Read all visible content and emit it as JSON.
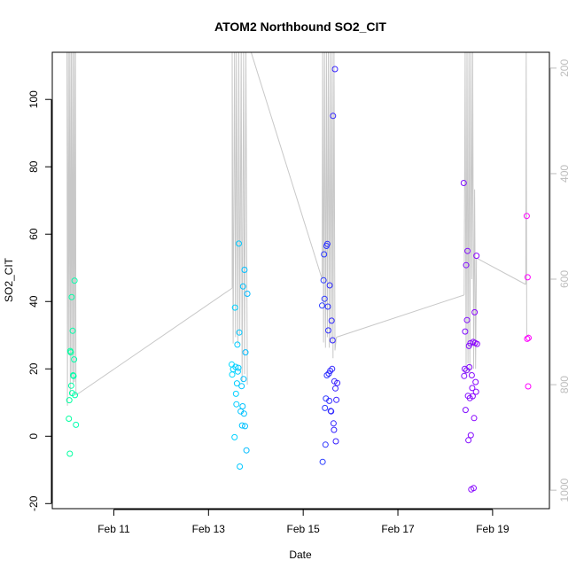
{
  "chart_data": {
    "type": "scatter",
    "title": "ATOM2 Northbound SO2_CIT",
    "xlabel": "Date",
    "ylabel": "SO2_CIT",
    "x_unit": "date (Feb)",
    "xlim": [
      9.7,
      20.2
    ],
    "ylim": [
      -21.5,
      114
    ],
    "y2lim": [
      1035,
      170
    ],
    "x_ticks": [
      {
        "value": 11,
        "label": "Feb 11"
      },
      {
        "value": 13,
        "label": "Feb 13"
      },
      {
        "value": 15,
        "label": "Feb 15"
      },
      {
        "value": 17,
        "label": "Feb 17"
      },
      {
        "value": 19,
        "label": "Feb 19"
      }
    ],
    "y_ticks": [
      -20,
      0,
      20,
      40,
      60,
      80,
      100
    ],
    "y2_ticks": [
      200,
      400,
      600,
      800,
      1000
    ],
    "grid": false,
    "point_marker": "open circle",
    "color_scale": "rainbow by date",
    "colors": {
      "altitude_line": "#c8c8c8",
      "axis": "#000000",
      "right_axis": "#bdbdbd"
    },
    "points": [
      {
        "x": 10.05,
        "y": 5.2,
        "color": "#00ffa0"
      },
      {
        "x": 10.07,
        "y": -5.2,
        "color": "#00ffa0"
      },
      {
        "x": 10.06,
        "y": 10.7,
        "color": "#00ffa0"
      },
      {
        "x": 10.08,
        "y": 25.3,
        "color": "#00ffa0"
      },
      {
        "x": 10.09,
        "y": 24.9,
        "color": "#00ffa0"
      },
      {
        "x": 10.1,
        "y": 15.0,
        "color": "#00ffa5"
      },
      {
        "x": 10.11,
        "y": 41.3,
        "color": "#00ffa5"
      },
      {
        "x": 10.12,
        "y": 12.8,
        "color": "#00ffa5"
      },
      {
        "x": 10.13,
        "y": 31.3,
        "color": "#00ffa8"
      },
      {
        "x": 10.14,
        "y": 18.1,
        "color": "#00ffa8"
      },
      {
        "x": 10.15,
        "y": 17.9,
        "color": "#00ffaa"
      },
      {
        "x": 10.16,
        "y": 22.8,
        "color": "#00ffaa"
      },
      {
        "x": 10.17,
        "y": 46.2,
        "color": "#00ffac"
      },
      {
        "x": 10.18,
        "y": 12.2,
        "color": "#00ffac"
      },
      {
        "x": 10.2,
        "y": 3.4,
        "color": "#00ffb0"
      },
      {
        "x": 13.49,
        "y": 21.3,
        "color": "#00d8ff"
      },
      {
        "x": 13.5,
        "y": 18.3,
        "color": "#00d8ff"
      },
      {
        "x": 13.52,
        "y": 19.9,
        "color": "#00d5ff"
      },
      {
        "x": 13.55,
        "y": -0.3,
        "color": "#00d2ff"
      },
      {
        "x": 13.56,
        "y": 38.2,
        "color": "#00d2ff"
      },
      {
        "x": 13.57,
        "y": 20.6,
        "color": "#00d0ff"
      },
      {
        "x": 13.58,
        "y": 12.6,
        "color": "#00d0ff"
      },
      {
        "x": 13.59,
        "y": 9.5,
        "color": "#00ceff"
      },
      {
        "x": 13.6,
        "y": 15.7,
        "color": "#00ceff"
      },
      {
        "x": 13.61,
        "y": 27.2,
        "color": "#00ccff"
      },
      {
        "x": 13.62,
        "y": 19.2,
        "color": "#00ccff"
      },
      {
        "x": 13.63,
        "y": 20.3,
        "color": "#00caff"
      },
      {
        "x": 13.64,
        "y": 57.2,
        "color": "#00caff"
      },
      {
        "x": 13.65,
        "y": 30.8,
        "color": "#00c8ff"
      },
      {
        "x": 13.66,
        "y": -9.0,
        "color": "#00c8ff"
      },
      {
        "x": 13.68,
        "y": 7.4,
        "color": "#00c6ff"
      },
      {
        "x": 13.7,
        "y": 14.9,
        "color": "#00c4ff"
      },
      {
        "x": 13.71,
        "y": 3.2,
        "color": "#00c4ff"
      },
      {
        "x": 13.72,
        "y": 8.9,
        "color": "#00c2ff"
      },
      {
        "x": 13.73,
        "y": 44.5,
        "color": "#00c2ff"
      },
      {
        "x": 13.74,
        "y": 17.0,
        "color": "#00c0ff"
      },
      {
        "x": 13.75,
        "y": 6.7,
        "color": "#00c0ff"
      },
      {
        "x": 13.76,
        "y": 49.4,
        "color": "#00beff"
      },
      {
        "x": 13.77,
        "y": 3.0,
        "color": "#00beff"
      },
      {
        "x": 13.78,
        "y": 24.9,
        "color": "#00bcff"
      },
      {
        "x": 13.8,
        "y": -4.2,
        "color": "#00bcff"
      },
      {
        "x": 13.82,
        "y": 42.3,
        "color": "#00baff"
      },
      {
        "x": 15.4,
        "y": 38.8,
        "color": "#2a3cff"
      },
      {
        "x": 15.41,
        "y": -7.6,
        "color": "#2a3cff"
      },
      {
        "x": 15.43,
        "y": 46.3,
        "color": "#2b3aff"
      },
      {
        "x": 15.44,
        "y": 54.0,
        "color": "#2b3aff"
      },
      {
        "x": 15.45,
        "y": 40.8,
        "color": "#2c38ff"
      },
      {
        "x": 15.46,
        "y": 8.4,
        "color": "#2c38ff"
      },
      {
        "x": 15.47,
        "y": -2.5,
        "color": "#2d36ff"
      },
      {
        "x": 15.48,
        "y": 11.2,
        "color": "#2d36ff"
      },
      {
        "x": 15.49,
        "y": 56.5,
        "color": "#2e34ff"
      },
      {
        "x": 15.5,
        "y": 18.1,
        "color": "#2e34ff"
      },
      {
        "x": 15.51,
        "y": 57.1,
        "color": "#2f32ff"
      },
      {
        "x": 15.52,
        "y": 38.5,
        "color": "#2f32ff"
      },
      {
        "x": 15.53,
        "y": 31.4,
        "color": "#3030ff"
      },
      {
        "x": 15.54,
        "y": 18.6,
        "color": "#3030ff"
      },
      {
        "x": 15.55,
        "y": 10.5,
        "color": "#312eff"
      },
      {
        "x": 15.56,
        "y": 44.8,
        "color": "#312eff"
      },
      {
        "x": 15.57,
        "y": 19.4,
        "color": "#322cff"
      },
      {
        "x": 15.58,
        "y": 7.5,
        "color": "#322cff"
      },
      {
        "x": 15.59,
        "y": 7.4,
        "color": "#332aff"
      },
      {
        "x": 15.6,
        "y": 34.3,
        "color": "#332aff"
      },
      {
        "x": 15.61,
        "y": 20.0,
        "color": "#3428ff"
      },
      {
        "x": 15.62,
        "y": 28.5,
        "color": "#3428ff"
      },
      {
        "x": 15.63,
        "y": 95.1,
        "color": "#3526ff"
      },
      {
        "x": 15.64,
        "y": 3.8,
        "color": "#3526ff"
      },
      {
        "x": 15.65,
        "y": 1.9,
        "color": "#3624ff"
      },
      {
        "x": 15.66,
        "y": 16.3,
        "color": "#3624ff"
      },
      {
        "x": 15.67,
        "y": 109.0,
        "color": "#3722ff"
      },
      {
        "x": 15.68,
        "y": 14.2,
        "color": "#3722ff"
      },
      {
        "x": 15.69,
        "y": -1.5,
        "color": "#3820ff"
      },
      {
        "x": 15.7,
        "y": 10.8,
        "color": "#3820ff"
      },
      {
        "x": 15.72,
        "y": 15.8,
        "color": "#391eff"
      },
      {
        "x": 18.39,
        "y": 75.2,
        "color": "#7f10ff"
      },
      {
        "x": 18.4,
        "y": 17.9,
        "color": "#7f10ff"
      },
      {
        "x": 18.41,
        "y": 20.0,
        "color": "#800fff"
      },
      {
        "x": 18.42,
        "y": 31.1,
        "color": "#800fff"
      },
      {
        "x": 18.43,
        "y": 7.8,
        "color": "#810eff"
      },
      {
        "x": 18.44,
        "y": 50.8,
        "color": "#810eff"
      },
      {
        "x": 18.45,
        "y": 19.6,
        "color": "#820dff"
      },
      {
        "x": 18.46,
        "y": 34.5,
        "color": "#820dff"
      },
      {
        "x": 18.47,
        "y": 55.0,
        "color": "#830cff"
      },
      {
        "x": 18.48,
        "y": 12.0,
        "color": "#830cff"
      },
      {
        "x": 18.49,
        "y": -1.2,
        "color": "#840bff"
      },
      {
        "x": 18.5,
        "y": 26.8,
        "color": "#840bff"
      },
      {
        "x": 18.51,
        "y": 20.5,
        "color": "#850aff"
      },
      {
        "x": 18.52,
        "y": 11.3,
        "color": "#850aff"
      },
      {
        "x": 18.53,
        "y": 27.6,
        "color": "#8609ff"
      },
      {
        "x": 18.54,
        "y": 0.3,
        "color": "#8609ff"
      },
      {
        "x": 18.55,
        "y": -15.8,
        "color": "#8708ff"
      },
      {
        "x": 18.56,
        "y": 18.1,
        "color": "#8708ff"
      },
      {
        "x": 18.57,
        "y": 14.3,
        "color": "#8807ff"
      },
      {
        "x": 18.58,
        "y": 11.9,
        "color": "#8807ff"
      },
      {
        "x": 18.59,
        "y": 28.0,
        "color": "#8906ff"
      },
      {
        "x": 18.6,
        "y": -15.4,
        "color": "#8906ff"
      },
      {
        "x": 18.61,
        "y": 5.4,
        "color": "#8a05ff"
      },
      {
        "x": 18.62,
        "y": 36.8,
        "color": "#8a05ff"
      },
      {
        "x": 18.63,
        "y": 27.7,
        "color": "#8b04ff"
      },
      {
        "x": 18.64,
        "y": 16.1,
        "color": "#8b04ff"
      },
      {
        "x": 18.65,
        "y": 13.2,
        "color": "#8c03ff"
      },
      {
        "x": 18.66,
        "y": 53.6,
        "color": "#8c03ff"
      },
      {
        "x": 18.67,
        "y": 27.4,
        "color": "#8d02ff"
      },
      {
        "x": 19.72,
        "y": 65.4,
        "color": "#ff00ff"
      },
      {
        "x": 19.73,
        "y": 28.9,
        "color": "#ff00ff"
      },
      {
        "x": 19.74,
        "y": 47.2,
        "color": "#ff00ff"
      },
      {
        "x": 19.75,
        "y": 14.8,
        "color": "#ff00ff"
      },
      {
        "x": 19.76,
        "y": 29.2,
        "color": "#ff00ff"
      }
    ],
    "altitude_segments": [
      [
        [
          10.01,
          170
        ],
        [
          10.02,
          840
        ],
        [
          10.04,
          170
        ],
        [
          10.05,
          740
        ],
        [
          10.07,
          170
        ],
        [
          10.08,
          820
        ],
        [
          10.1,
          170
        ],
        [
          10.11,
          785
        ],
        [
          10.13,
          170
        ],
        [
          10.14,
          800
        ],
        [
          10.16,
          170
        ],
        [
          10.17,
          795
        ],
        [
          10.19,
          170
        ],
        [
          10.2,
          820
        ]
      ],
      [
        [
          10.2,
          820
        ],
        [
          13.5,
          617
        ]
      ],
      [
        [
          13.5,
          617
        ],
        [
          13.5,
          170
        ],
        [
          13.52,
          722
        ],
        [
          13.55,
          170
        ],
        [
          13.57,
          710
        ],
        [
          13.59,
          170
        ],
        [
          13.62,
          724
        ],
        [
          13.64,
          170
        ],
        [
          13.66,
          706
        ],
        [
          13.69,
          170
        ],
        [
          13.71,
          795
        ],
        [
          13.74,
          170
        ],
        [
          13.76,
          780
        ],
        [
          13.79,
          170
        ],
        [
          13.82,
          800
        ]
      ],
      [
        [
          13.9,
          170
        ],
        [
          15.4,
          600
        ]
      ],
      [
        [
          15.4,
          600
        ],
        [
          15.41,
          170
        ],
        [
          15.43,
          720
        ],
        [
          15.45,
          170
        ],
        [
          15.47,
          730
        ],
        [
          15.49,
          170
        ],
        [
          15.51,
          710
        ],
        [
          15.53,
          170
        ],
        [
          15.55,
          730
        ],
        [
          15.57,
          170
        ],
        [
          15.59,
          720
        ],
        [
          15.61,
          170
        ],
        [
          15.63,
          750
        ],
        [
          15.65,
          170
        ],
        [
          15.67,
          735
        ],
        [
          15.7,
          710
        ]
      ],
      [
        [
          15.7,
          710
        ],
        [
          18.4,
          630
        ]
      ],
      [
        [
          18.4,
          630
        ],
        [
          18.42,
          170
        ],
        [
          18.44,
          780
        ],
        [
          18.46,
          170
        ],
        [
          18.48,
          760
        ],
        [
          18.5,
          170
        ],
        [
          18.52,
          780
        ],
        [
          18.54,
          170
        ],
        [
          18.56,
          600
        ],
        [
          18.58,
          170
        ],
        [
          18.6,
          770
        ],
        [
          18.62,
          430
        ],
        [
          18.64,
          770
        ],
        [
          18.66,
          560
        ]
      ],
      [
        [
          18.66,
          560
        ],
        [
          19.7,
          610
        ]
      ],
      [
        [
          19.7,
          610
        ],
        [
          19.71,
          170
        ],
        [
          19.72,
          710
        ],
        [
          19.76,
          705
        ]
      ]
    ]
  }
}
